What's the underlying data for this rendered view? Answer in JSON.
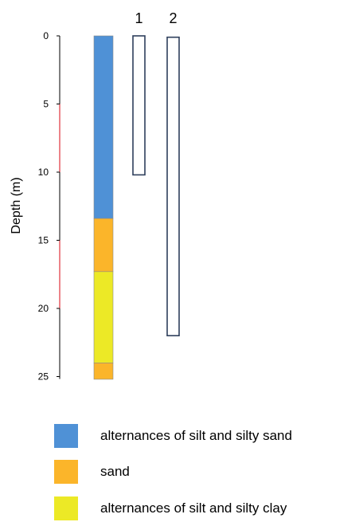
{
  "diagram": {
    "y_axis_label": "Depth (m)",
    "depth_ticks": [
      0,
      5,
      10,
      15,
      20,
      25
    ],
    "depth_max": 25,
    "red_marked_intervals": [
      [
        5,
        10
      ],
      [
        15,
        20
      ]
    ],
    "layers": [
      {
        "name": "alternances of silt and silty sand",
        "top": 0,
        "bottom": 13.4,
        "color": "#4f91d6"
      },
      {
        "name": "sand",
        "top": 13.4,
        "bottom": 17.3,
        "color": "#fbb52a"
      },
      {
        "name": "alternances of silt and silty clay",
        "top": 17.3,
        "bottom": 24.0,
        "color": "#ece926"
      },
      {
        "name": "sand",
        "top": 24.0,
        "bottom": 25.2,
        "color": "#fbb52a"
      }
    ],
    "boreholes": [
      {
        "label": "1",
        "top": 0,
        "bottom": 10.2
      },
      {
        "label": "2",
        "top": 0.1,
        "bottom": 22.0
      }
    ],
    "borehole_outline_color": "#2e3f5c",
    "axis_marker_color": "#e0303a"
  },
  "legend": [
    {
      "label": "alternances of silt and silty sand",
      "color": "#4f91d6"
    },
    {
      "label": "sand",
      "color": "#fbb52a"
    },
    {
      "label": "alternances of silt and silty clay",
      "color": "#ece926"
    }
  ]
}
